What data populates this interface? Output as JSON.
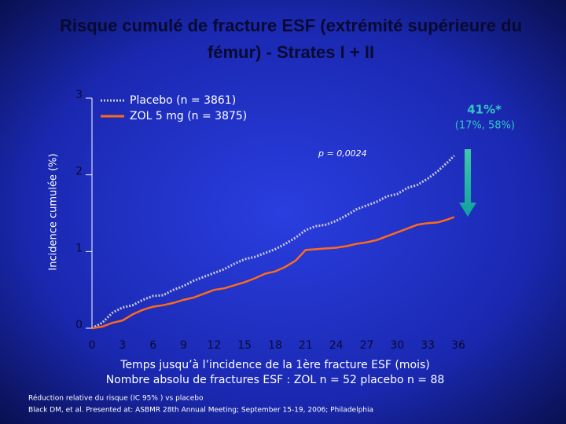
{
  "chart_data": {
    "type": "line",
    "title": "Risque cumulé de fracture ESF (extrémité supérieure du fémur) - Strates I + II",
    "y_label": "Incidence cumulée (%)",
    "x_label": "Temps jusqu’à l’incidence de la 1ère fracture ESF (mois)",
    "subtitle_counts": "Nombre absolu de fractures ESF :  ZOL n = 52       placebo n = 88",
    "annotations": [
      "41%*",
      "(17%, 58%)",
      "p = 0,0024"
    ],
    "footnotes": [
      "Réduction relative du risque (IC 95% ) vs placebo",
      "Black DM, et al. Presented at: ASBMR 28th Annual Meeting; September 15-19, 2006; Philadelphia"
    ],
    "xlim": [
      0,
      36
    ],
    "ylim": [
      0,
      3
    ],
    "xticks": [
      0,
      3,
      6,
      9,
      12,
      15,
      18,
      21,
      24,
      27,
      30,
      33,
      36
    ],
    "yticks": [
      0,
      1,
      2,
      3
    ],
    "x": [
      0,
      1,
      2,
      3,
      4,
      5,
      6,
      7,
      8,
      9,
      10,
      11,
      12,
      13,
      14,
      15,
      16,
      17,
      18,
      19,
      20,
      21,
      22,
      23,
      24,
      25,
      26,
      27,
      28,
      29,
      30,
      31,
      32,
      33,
      34,
      35,
      35.6
    ],
    "series": [
      {
        "name": "Placebo (n = 3861)",
        "color": "#c8c8d8",
        "dash": true,
        "values": [
          0,
          0.07,
          0.2,
          0.27,
          0.3,
          0.37,
          0.42,
          0.43,
          0.5,
          0.55,
          0.62,
          0.67,
          0.72,
          0.77,
          0.84,
          0.9,
          0.93,
          0.98,
          1.03,
          1.1,
          1.18,
          1.28,
          1.33,
          1.35,
          1.4,
          1.47,
          1.55,
          1.6,
          1.65,
          1.72,
          1.75,
          1.83,
          1.87,
          1.95,
          2.05,
          2.17,
          2.25
        ]
      },
      {
        "name": "ZOL 5 mg (n = 3875)",
        "color": "#ff6a1a",
        "dash": false,
        "values": [
          0,
          0.02,
          0.07,
          0.1,
          0.18,
          0.24,
          0.28,
          0.3,
          0.33,
          0.37,
          0.4,
          0.45,
          0.5,
          0.52,
          0.56,
          0.6,
          0.65,
          0.71,
          0.74,
          0.8,
          0.88,
          1.02,
          1.03,
          1.04,
          1.05,
          1.07,
          1.1,
          1.12,
          1.15,
          1.2,
          1.25,
          1.3,
          1.35,
          1.37,
          1.38,
          1.42,
          1.45
        ]
      }
    ]
  }
}
